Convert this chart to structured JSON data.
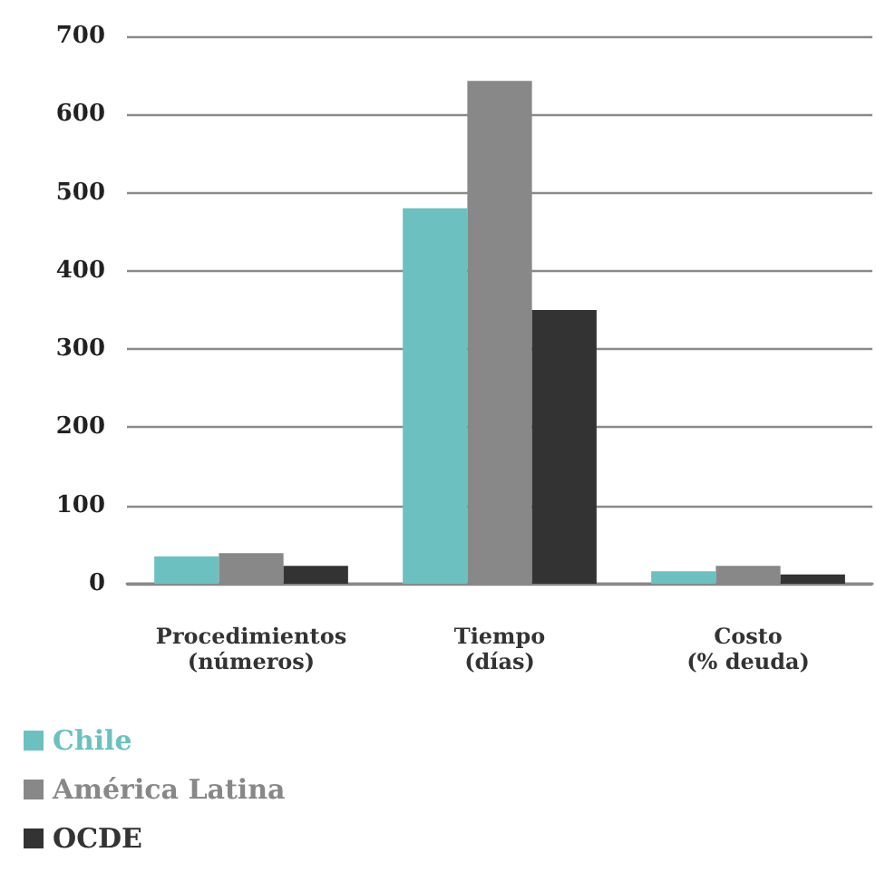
{
  "chart_data": {
    "type": "bar",
    "categories": [
      "Procedimientos\n(números)",
      "Tiempo\n(días)",
      "Costo\n(% deuda)"
    ],
    "series": [
      {
        "name": "Chile",
        "color": "#6cc1c0",
        "values": [
          35,
          480,
          16
        ]
      },
      {
        "name": "América Latina",
        "color": "#888888",
        "values": [
          39,
          643,
          23
        ]
      },
      {
        "name": "OCDE",
        "color": "#333333",
        "values": [
          23,
          350,
          12
        ]
      }
    ],
    "ylim": [
      0,
      700
    ],
    "yticks": [
      0,
      100,
      200,
      300,
      400,
      500,
      600,
      700
    ],
    "grid": "y",
    "legend": "bottom left"
  }
}
